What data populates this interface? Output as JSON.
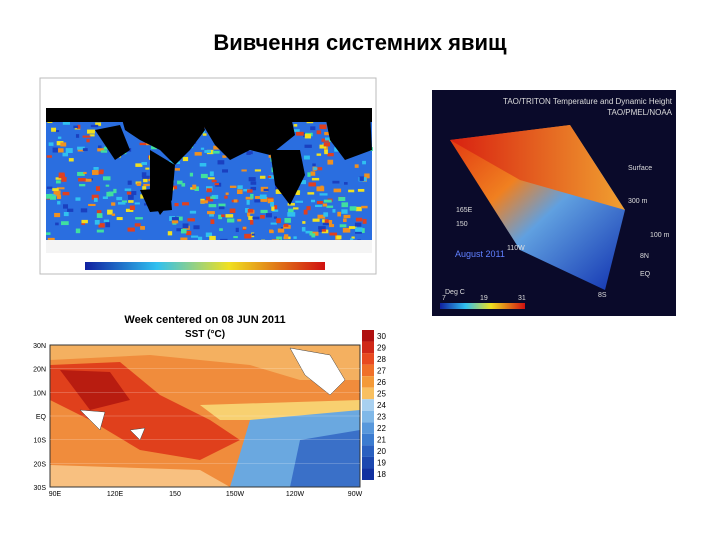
{
  "slide": {
    "title": "Вивчення системних явищ"
  },
  "sst_map": {
    "title": "Week centered on 08 JUN 2011",
    "subtitle": "SST (°C)",
    "lat_labels": [
      "30N",
      "20N",
      "10N",
      "EQ",
      "10S",
      "20S",
      "30S"
    ],
    "lon_labels": [
      "90E",
      "120E",
      "150",
      "150W",
      "120W",
      "90W"
    ],
    "colorbar_labels": [
      "30",
      "29",
      "28",
      "27",
      "26",
      "25",
      "24",
      "23",
      "22",
      "21",
      "20",
      "19",
      "18"
    ]
  },
  "tao_image": {
    "title": "TAO/TRITON Temperature and Dynamic Height",
    "source": "TAO/PMEL/NOAA",
    "labels": [
      "Surface",
      "300 m",
      "100 m",
      "165E",
      "150",
      "110W",
      "August 2011",
      "8N",
      "EQ",
      "8S",
      "Deg C",
      "7",
      "19",
      "31"
    ]
  }
}
